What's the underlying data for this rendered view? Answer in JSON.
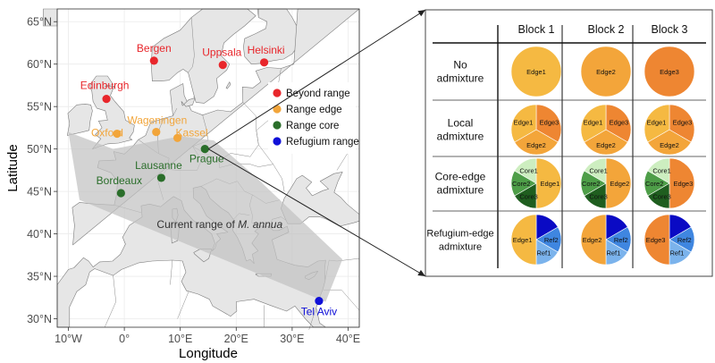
{
  "map": {
    "xlabel": "Longitude",
    "ylabel": "Latitude",
    "x_ticks": [
      {
        "value": -10,
        "label": "10°W"
      },
      {
        "value": 0,
        "label": "0°"
      },
      {
        "value": 10,
        "label": "10°E"
      },
      {
        "value": 20,
        "label": "20°E"
      },
      {
        "value": 30,
        "label": "30°E"
      },
      {
        "value": 40,
        "label": "40°E"
      }
    ],
    "y_ticks": [
      {
        "value": 30,
        "label": "30°N"
      },
      {
        "value": 35,
        "label": "35°N"
      },
      {
        "value": 40,
        "label": "40°N"
      },
      {
        "value": 45,
        "label": "45°N"
      },
      {
        "value": 50,
        "label": "50°N"
      },
      {
        "value": 55,
        "label": "55°N"
      },
      {
        "value": 60,
        "label": "60°N"
      },
      {
        "value": 65,
        "label": "65°N"
      }
    ],
    "x_range": [
      -12,
      42
    ],
    "y_range": [
      29,
      66.5
    ],
    "range_label_prefix": "Current range of ",
    "range_label_species": "M. annua",
    "range_polygon": [
      [
        -10,
        52
      ],
      [
        -2,
        50
      ],
      [
        10,
        51.5
      ],
      [
        16,
        51
      ],
      [
        23,
        47
      ],
      [
        39,
        37
      ],
      [
        36,
        32
      ],
      [
        -8,
        44
      ]
    ],
    "colors": {
      "beyond": "#e8262b",
      "edge": "#f2a53a",
      "core": "#2a6e2a",
      "refugium": "#1010d8",
      "land": "#e6e6e6",
      "sea": "#ffffff",
      "range_fill": "#c2c2c2"
    },
    "legend": [
      {
        "label": "Beyond range",
        "category": "beyond"
      },
      {
        "label": "Range edge",
        "category": "edge"
      },
      {
        "label": "Range core",
        "category": "core"
      },
      {
        "label": "Refugium range",
        "category": "refugium"
      }
    ],
    "sites": [
      {
        "name": "Bergen",
        "lon": 5.3,
        "lat": 60.4,
        "category": "beyond"
      },
      {
        "name": "Uppsala",
        "lon": 17.6,
        "lat": 59.9,
        "category": "beyond"
      },
      {
        "name": "Helsinki",
        "lon": 25.0,
        "lat": 60.2,
        "category": "beyond"
      },
      {
        "name": "Edinburgh",
        "lon": -3.2,
        "lat": 55.9,
        "category": "beyond"
      },
      {
        "name": "Wageningen",
        "lon": 5.7,
        "lat": 52.0,
        "category": "edge"
      },
      {
        "name": "Oxford",
        "lon": -1.3,
        "lat": 51.8,
        "category": "edge"
      },
      {
        "name": "Kassel",
        "lon": 9.5,
        "lat": 51.3,
        "category": "edge"
      },
      {
        "name": "Prague",
        "lon": 14.4,
        "lat": 50.0,
        "category": "core"
      },
      {
        "name": "Lausanne",
        "lon": 6.6,
        "lat": 46.6,
        "category": "core"
      },
      {
        "name": "Bordeaux",
        "lon": -0.6,
        "lat": 44.8,
        "category": "core"
      },
      {
        "name": "Tel Aviv",
        "lon": 34.8,
        "lat": 32.1,
        "category": "refugium"
      }
    ]
  },
  "design": {
    "columns": [
      "Block 1",
      "Block 2",
      "Block 3"
    ],
    "rows": [
      {
        "label_lines": [
          "No",
          "admixture"
        ]
      },
      {
        "label_lines": [
          "Local",
          "admixture"
        ]
      },
      {
        "label_lines": [
          "Core-edge",
          "admixture"
        ]
      },
      {
        "label_lines": [
          "Refugium-edge",
          "admixture"
        ]
      }
    ],
    "slice_colors": {
      "Edge1": "#f5b942",
      "Edge2": "#f3a53a",
      "Edge3": "#ee8632",
      "Core1": "#cdeec0",
      "Core2": "#4e9e48",
      "Core3": "#1f5e1f",
      "Ref1": "#7bb3ec",
      "Ref2": "#3f86e0",
      "Ref3": "#0a0ac4"
    },
    "cells": [
      [
        [
          {
            "label": "Edge1",
            "value": 1
          }
        ],
        [
          {
            "label": "Edge2",
            "value": 1
          }
        ],
        [
          {
            "label": "Edge3",
            "value": 1
          }
        ]
      ],
      [
        [
          {
            "label": "Edge3",
            "value": 1
          },
          {
            "label": "Edge2",
            "value": 1
          },
          {
            "label": "Edge1",
            "value": 1
          }
        ],
        [
          {
            "label": "Edge3",
            "value": 1
          },
          {
            "label": "Edge2",
            "value": 1
          },
          {
            "label": "Edge1",
            "value": 1
          }
        ],
        [
          {
            "label": "Edge3",
            "value": 1
          },
          {
            "label": "Edge2",
            "value": 1
          },
          {
            "label": "Edge1",
            "value": 1
          }
        ]
      ],
      [
        [
          {
            "label": "Edge1",
            "value": 3
          },
          {
            "label": "Core3",
            "value": 1
          },
          {
            "label": "Core2",
            "value": 1
          },
          {
            "label": "Core1",
            "value": 1
          }
        ],
        [
          {
            "label": "Edge2",
            "value": 3
          },
          {
            "label": "Core3",
            "value": 1
          },
          {
            "label": "Core2",
            "value": 1
          },
          {
            "label": "Core1",
            "value": 1
          }
        ],
        [
          {
            "label": "Edge3",
            "value": 3
          },
          {
            "label": "Core3",
            "value": 1
          },
          {
            "label": "Core2",
            "value": 1
          },
          {
            "label": "Core1",
            "value": 1
          }
        ]
      ],
      [
        [
          {
            "label": "Ref3",
            "value": 1,
            "show_label": false
          },
          {
            "label": "Ref2",
            "value": 1
          },
          {
            "label": "Ref1",
            "value": 1
          },
          {
            "label": "Edge1",
            "value": 3
          }
        ],
        [
          {
            "label": "Ref3",
            "value": 1,
            "show_label": false
          },
          {
            "label": "Ref2",
            "value": 1
          },
          {
            "label": "Ref1",
            "value": 1
          },
          {
            "label": "Edge2",
            "value": 3
          }
        ],
        [
          {
            "label": "Ref3",
            "value": 1,
            "show_label": false
          },
          {
            "label": "Ref2",
            "value": 1
          },
          {
            "label": "Ref1",
            "value": 1
          },
          {
            "label": "Edge3",
            "value": 3
          }
        ]
      ]
    ]
  }
}
